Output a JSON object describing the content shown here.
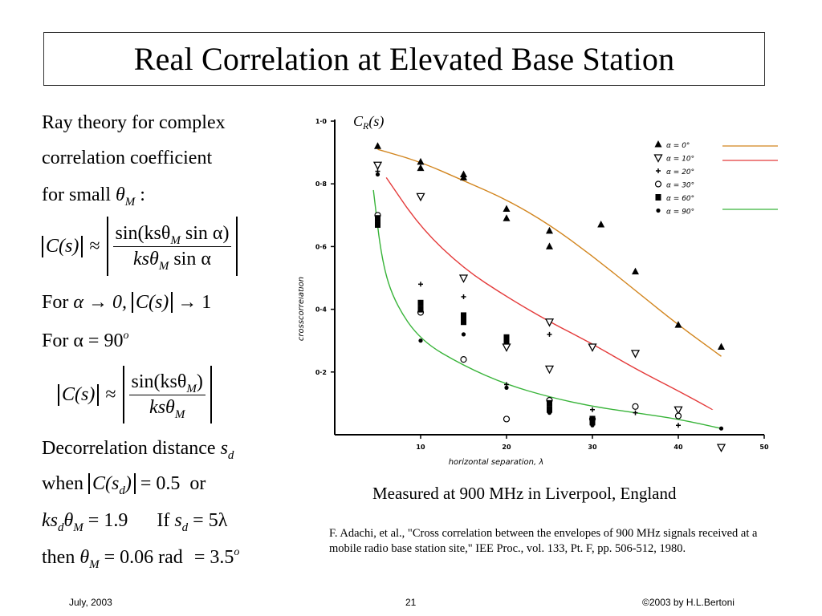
{
  "title": "Real Correlation at Elevated Base Station",
  "left": {
    "l1": "Ray theory for complex",
    "l2": "correlation coefficient",
    "l3a": "for small",
    "l3_theta": "θ",
    "l3_sub": "M",
    "l3b": ":",
    "eq1_lhs": "C(s)",
    "eq1_approx": "≈",
    "eq1_num": "sin(ksθ",
    "eq1_num_sub": "M",
    "eq1_num_end": "sin α)",
    "eq1_den": "ksθ",
    "eq1_den_sub": "M",
    "eq1_den_end": "sin α",
    "for1": "For",
    "for1_expr": "α → 0,",
    "for1_c": "C(s)",
    "for1_lim": "→ 1",
    "for2": "For",
    "for2_expr": "α = 90",
    "for2_sup": "o",
    "eq2_lhs": "C(s)",
    "eq2_approx": "≈",
    "eq2_num": "sin(ksθ",
    "eq2_num_sub": "M",
    "eq2_num_end": ")",
    "eq2_den": "ksθ",
    "eq2_den_sub": "M",
    "decor": "Decorrelation distance",
    "decor_s": "s",
    "decor_sub": "d",
    "when": "when",
    "when_c": "C(s",
    "when_c_sub": "d",
    "when_c_end": ")",
    "when_val": "= 0.5",
    "when_or": "or",
    "ks_a": "ks",
    "ks_sub": "d",
    "ks_theta": "θ",
    "ks_theta_sub": "M",
    "ks_val": "= 1.9",
    "if": "If",
    "if_s": "s",
    "if_sub": "d",
    "if_val": "= 5λ",
    "then": "then",
    "then_theta": "θ",
    "then_sub": "M",
    "then_val": "= 0.06  rad",
    "then_deg": "= 3.5",
    "then_sup": "o"
  },
  "chart_data": {
    "type": "scatter",
    "title": "",
    "ylabel_top": "C_R(s)",
    "ylabel_top_main": "C",
    "ylabel_top_sub": "R",
    "ylabel_top_arg": "(s)",
    "ylabel": "crosscorrelation",
    "xlabel": "horizontal   separation,  λ",
    "xlim": [
      0,
      50
    ],
    "ylim": [
      0,
      1.0
    ],
    "xticks": [
      "10",
      "20",
      "30",
      "40",
      "50"
    ],
    "yticks": [
      "0·2",
      "0·4",
      "0·6",
      "0·8",
      "1·0"
    ],
    "series": [
      {
        "name": "α = 0°",
        "marker": "triangle-up",
        "points": [
          [
            5,
            0.92
          ],
          [
            10,
            0.87
          ],
          [
            10,
            0.85
          ],
          [
            15,
            0.83
          ],
          [
            15,
            0.82
          ],
          [
            20,
            0.72
          ],
          [
            20,
            0.69
          ],
          [
            25,
            0.65
          ],
          [
            25,
            0.6
          ],
          [
            31,
            0.67
          ],
          [
            35,
            0.52
          ],
          [
            40,
            0.35
          ],
          [
            45,
            0.28
          ]
        ]
      },
      {
        "name": "α = 10°",
        "marker": "triangle-down",
        "points": [
          [
            5,
            0.86
          ],
          [
            10,
            0.76
          ],
          [
            15,
            0.5
          ],
          [
            20,
            0.28
          ],
          [
            25,
            0.36
          ],
          [
            25,
            0.21
          ],
          [
            30,
            0.28
          ],
          [
            35,
            0.26
          ],
          [
            40,
            0.08
          ],
          [
            45,
            -0.04
          ]
        ]
      },
      {
        "name": "α = 20°",
        "marker": "plus",
        "points": [
          [
            5,
            0.84
          ],
          [
            10,
            0.48
          ],
          [
            15,
            0.44
          ],
          [
            15,
            0.37
          ],
          [
            20,
            0.16
          ],
          [
            25,
            0.32
          ],
          [
            30,
            0.08
          ],
          [
            35,
            0.07
          ],
          [
            40,
            0.03
          ]
        ]
      },
      {
        "name": "α = 30°",
        "marker": "circle-open",
        "points": [
          [
            5,
            0.7
          ],
          [
            10,
            0.39
          ],
          [
            15,
            0.24
          ],
          [
            20,
            0.05
          ],
          [
            25,
            0.11
          ],
          [
            30,
            0.05
          ],
          [
            35,
            0.09
          ],
          [
            40,
            0.06
          ]
        ]
      },
      {
        "name": "α = 60°",
        "marker": "square",
        "points": [
          [
            5,
            0.69
          ],
          [
            5,
            0.67
          ],
          [
            10,
            0.42
          ],
          [
            10,
            0.4
          ],
          [
            15,
            0.38
          ],
          [
            15,
            0.36
          ],
          [
            20,
            0.31
          ],
          [
            20,
            0.3
          ],
          [
            25,
            0.1
          ],
          [
            25,
            0.08
          ],
          [
            30,
            0.05
          ],
          [
            30,
            0.04
          ]
        ]
      },
      {
        "name": "α = 90°",
        "marker": "dot",
        "points": [
          [
            5,
            0.83
          ],
          [
            10,
            0.3
          ],
          [
            15,
            0.32
          ],
          [
            20,
            0.15
          ],
          [
            25,
            0.07
          ],
          [
            30,
            0.03
          ],
          [
            45,
            0.02
          ]
        ]
      }
    ],
    "curves": [
      {
        "color": "#d2851e",
        "points": [
          [
            5,
            0.91
          ],
          [
            10,
            0.87
          ],
          [
            15,
            0.81
          ],
          [
            20,
            0.75
          ],
          [
            25,
            0.67
          ],
          [
            30,
            0.57
          ],
          [
            35,
            0.46
          ],
          [
            40,
            0.35
          ],
          [
            45,
            0.25
          ]
        ]
      },
      {
        "color": "#e43a3a",
        "points": [
          [
            6,
            0.82
          ],
          [
            10,
            0.66
          ],
          [
            15,
            0.53
          ],
          [
            20,
            0.44
          ],
          [
            25,
            0.36
          ],
          [
            30,
            0.29
          ],
          [
            35,
            0.21
          ],
          [
            40,
            0.14
          ],
          [
            44,
            0.08
          ]
        ]
      },
      {
        "color": "#39b43a",
        "points": [
          [
            4.5,
            0.78
          ],
          [
            5.5,
            0.55
          ],
          [
            7,
            0.42
          ],
          [
            10,
            0.3
          ],
          [
            15,
            0.22
          ],
          [
            20,
            0.16
          ],
          [
            25,
            0.12
          ],
          [
            30,
            0.09
          ],
          [
            35,
            0.07
          ],
          [
            40,
            0.05
          ],
          [
            45,
            0.02
          ]
        ]
      }
    ],
    "legend_lines": [
      "#d2851e",
      "#e43a3a",
      "#39b43a"
    ]
  },
  "caption": "Measured at 900 MHz in Liverpool, England",
  "reference": "F. Adachi, et al., \"Cross correlation between the envelopes of 900 MHz signals received at a mobile radio base station site,\" IEE Proc., vol. 133, Pt. F, pp. 506-512, 1980.",
  "footer": {
    "date": "July, 2003",
    "page": "21",
    "copyright": "©2003 by H.L.Bertoni"
  }
}
